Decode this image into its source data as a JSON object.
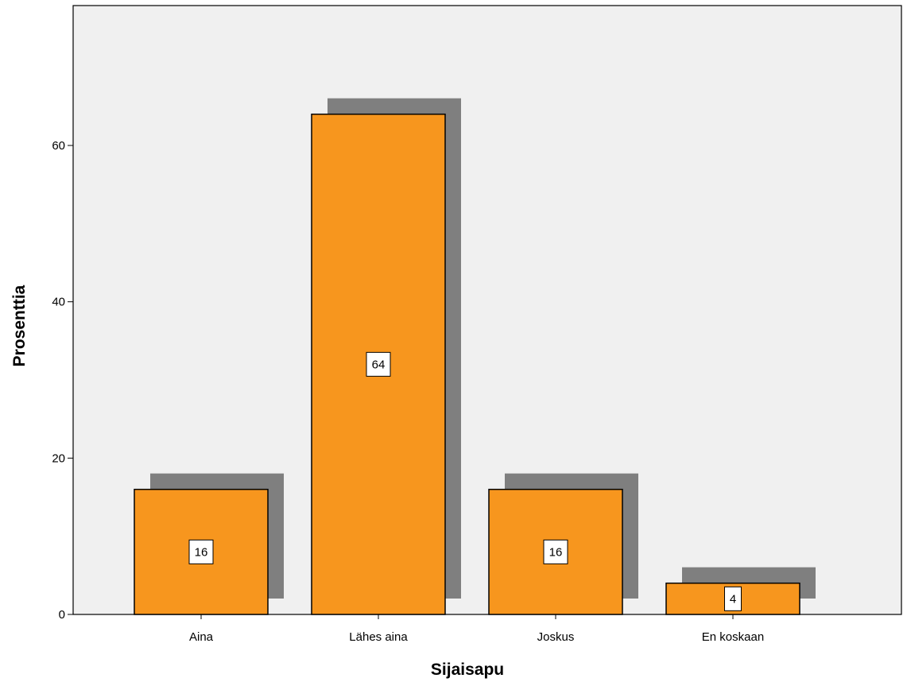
{
  "chart_data": {
    "type": "bar",
    "title": "",
    "xlabel": "Sijaisapu",
    "ylabel": "Prosenttia",
    "categories": [
      "Aina",
      "Lähes aina",
      "Joskus",
      "En koskaan"
    ],
    "values": [
      16,
      64,
      16,
      4
    ],
    "data_labels": [
      "16",
      "64",
      "16",
      "4"
    ],
    "ylim": [
      0,
      78
    ],
    "yticks": [
      0,
      20,
      40,
      60
    ],
    "ytick_labels": [
      "0",
      "20",
      "40",
      "60"
    ],
    "grid": false,
    "legend": "none",
    "style": "3d-shadow"
  },
  "colors": {
    "bar_fill": "#f7961e",
    "bar_shadow": "#7f7f7f",
    "plot_background": "#f0f0f0",
    "axis": "#000000"
  }
}
